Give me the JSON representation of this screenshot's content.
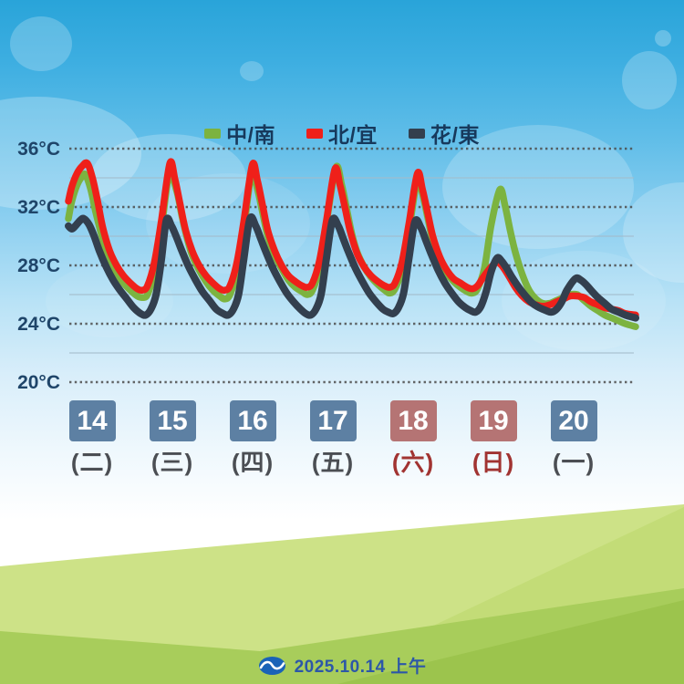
{
  "legend": {
    "position": "top-center"
  },
  "footer": {
    "issued": "2025.10.14 上午",
    "logo": "cwa-logo"
  },
  "colors": {
    "sky_top": "#29a4d9",
    "weekday_box": "#5d80a3",
    "weekend_box": "#b57474",
    "weekday_text": "#4b4e53",
    "weekend_text": "#a13331",
    "tick_label": "#1f4569",
    "major_grid": "#4c4c4c",
    "minor_grid": "#a3bcca",
    "hill_back": "#cde287",
    "hill_mid": "#c3dc77",
    "hill_front": "#a8cd5b",
    "hill_front_dark": "#9cc44d",
    "footer_text": "#2c57a8"
  },
  "chart_data": {
    "type": "line",
    "title": "",
    "xlabel": "",
    "ylabel": "°C",
    "x_unit": "hours since 2025-10-14 00:00",
    "x_range": [
      8,
      173
    ],
    "ylim": [
      19.5,
      37
    ],
    "y_ticks": [
      {
        "value": 36,
        "label": "36°C"
      },
      {
        "value": 32,
        "label": "32°C"
      },
      {
        "value": 28,
        "label": "28°C"
      },
      {
        "value": 24,
        "label": "24°C"
      },
      {
        "value": 20,
        "label": "20°C"
      }
    ],
    "y_minor": [
      34,
      30,
      26,
      22
    ],
    "grid": {
      "major": "dotted dark",
      "minor": "solid light"
    },
    "legend_position": "top",
    "days": [
      {
        "date": "14",
        "weekday": "(二)",
        "weekend": false
      },
      {
        "date": "15",
        "weekday": "(三)",
        "weekend": false
      },
      {
        "date": "16",
        "weekday": "(四)",
        "weekend": false
      },
      {
        "date": "17",
        "weekday": "(五)",
        "weekend": false
      },
      {
        "date": "18",
        "weekday": "(六)",
        "weekend": true
      },
      {
        "date": "19",
        "weekday": "(日)",
        "weekend": true
      },
      {
        "date": "20",
        "weekday": "(一)",
        "weekend": false
      }
    ],
    "series": [
      {
        "name": "中/南",
        "slug": "central-south",
        "color": "#7cb340",
        "stroke_width": 7.5,
        "points": [
          [
            8,
            31.2
          ],
          [
            9,
            32.4
          ],
          [
            10.5,
            33.5
          ],
          [
            12,
            34.1
          ],
          [
            13,
            34.2
          ],
          [
            14.5,
            33.2
          ],
          [
            16,
            31.6
          ],
          [
            18,
            29.8
          ],
          [
            20,
            28.4
          ],
          [
            22,
            27.5
          ],
          [
            24,
            26.8
          ],
          [
            26,
            26.3
          ],
          [
            28,
            25.9
          ],
          [
            29.5,
            25.8
          ],
          [
            31,
            26
          ],
          [
            33,
            27.6
          ],
          [
            35,
            30.4
          ],
          [
            37.3,
            34.2
          ],
          [
            39.5,
            33.1
          ],
          [
            41,
            31.4
          ],
          [
            42.5,
            29.9
          ],
          [
            44,
            28.7
          ],
          [
            46,
            27.7
          ],
          [
            48,
            26.9
          ],
          [
            50,
            26.3
          ],
          [
            52,
            25.9
          ],
          [
            53.5,
            25.7
          ],
          [
            55,
            26
          ],
          [
            57,
            27.6
          ],
          [
            59,
            30.5
          ],
          [
            61.3,
            34.3
          ],
          [
            63,
            33.2
          ],
          [
            64.5,
            31.6
          ],
          [
            66,
            30
          ],
          [
            68,
            28.7
          ],
          [
            70,
            27.8
          ],
          [
            72,
            27
          ],
          [
            74,
            26.5
          ],
          [
            76,
            26.2
          ],
          [
            77.5,
            26
          ],
          [
            79,
            26.3
          ],
          [
            81,
            27.8
          ],
          [
            83,
            30.8
          ],
          [
            85.8,
            34.7
          ],
          [
            87.5,
            33.5
          ],
          [
            89,
            31.8
          ],
          [
            90.5,
            30.1
          ],
          [
            92,
            28.9
          ],
          [
            94,
            27.9
          ],
          [
            96,
            27.2
          ],
          [
            98,
            26.7
          ],
          [
            100,
            26.3
          ],
          [
            101.5,
            26.1
          ],
          [
            103,
            26.4
          ],
          [
            105,
            27.7
          ],
          [
            107,
            30.3
          ],
          [
            109.5,
            33.9
          ],
          [
            111,
            32.9
          ],
          [
            112.5,
            31.3
          ],
          [
            114,
            29.7
          ],
          [
            116,
            28.4
          ],
          [
            118,
            27.5
          ],
          [
            120,
            26.9
          ],
          [
            122,
            26.5
          ],
          [
            124,
            26.2
          ],
          [
            125.5,
            26.1
          ],
          [
            127,
            26.4
          ],
          [
            129,
            27.8
          ],
          [
            131,
            30.8
          ],
          [
            133.5,
            33.2
          ],
          [
            135,
            32.1
          ],
          [
            136.5,
            30.4
          ],
          [
            138,
            28.9
          ],
          [
            140,
            27.4
          ],
          [
            142,
            26.3
          ],
          [
            144,
            25.7
          ],
          [
            146,
            25.4
          ],
          [
            148,
            25.4
          ],
          [
            150,
            25.6
          ],
          [
            152,
            25.8
          ],
          [
            154,
            26
          ],
          [
            156,
            26
          ],
          [
            158,
            25.6
          ],
          [
            160,
            25.2
          ],
          [
            162,
            24.9
          ],
          [
            164,
            24.6
          ],
          [
            166,
            24.4
          ],
          [
            168,
            24.2
          ],
          [
            170,
            24
          ],
          [
            173,
            23.8
          ]
        ]
      },
      {
        "name": "北/宜",
        "slug": "north-yilan",
        "color": "#ef201a",
        "stroke_width": 7.5,
        "points": [
          [
            8,
            32.4
          ],
          [
            9,
            33.4
          ],
          [
            10.5,
            34.3
          ],
          [
            12,
            34.8
          ],
          [
            13.5,
            35
          ],
          [
            15,
            34
          ],
          [
            16.5,
            32.4
          ],
          [
            18,
            30.6
          ],
          [
            20,
            29
          ],
          [
            22,
            28
          ],
          [
            24,
            27.3
          ],
          [
            26,
            26.8
          ],
          [
            28,
            26.4
          ],
          [
            29.5,
            26.3
          ],
          [
            31,
            26.6
          ],
          [
            33,
            28.2
          ],
          [
            35,
            31
          ],
          [
            37.5,
            35
          ],
          [
            39,
            33.9
          ],
          [
            40.5,
            32.2
          ],
          [
            42,
            30.5
          ],
          [
            44,
            29
          ],
          [
            46,
            28
          ],
          [
            48,
            27.3
          ],
          [
            50,
            26.8
          ],
          [
            52,
            26.4
          ],
          [
            53.5,
            26.3
          ],
          [
            55,
            26.6
          ],
          [
            57,
            28.2
          ],
          [
            59,
            31
          ],
          [
            61.5,
            34.9
          ],
          [
            63,
            33.8
          ],
          [
            64.5,
            32.1
          ],
          [
            66,
            30.4
          ],
          [
            68,
            29
          ],
          [
            70,
            28
          ],
          [
            72,
            27.3
          ],
          [
            74,
            26.9
          ],
          [
            76,
            26.6
          ],
          [
            77.5,
            26.5
          ],
          [
            79,
            26.8
          ],
          [
            81,
            28.3
          ],
          [
            83,
            31
          ],
          [
            85.5,
            34.6
          ],
          [
            87,
            33.5
          ],
          [
            88.5,
            31.9
          ],
          [
            90,
            30.3
          ],
          [
            92,
            28.8
          ],
          [
            94,
            27.9
          ],
          [
            96,
            27.3
          ],
          [
            98,
            26.9
          ],
          [
            100,
            26.6
          ],
          [
            101.5,
            26.5
          ],
          [
            103,
            26.8
          ],
          [
            105,
            28.2
          ],
          [
            107,
            30.8
          ],
          [
            109.5,
            34.3
          ],
          [
            111,
            33.2
          ],
          [
            112.5,
            31.6
          ],
          [
            114,
            30
          ],
          [
            116,
            28.6
          ],
          [
            118,
            27.7
          ],
          [
            120,
            27.1
          ],
          [
            122,
            26.8
          ],
          [
            124,
            26.5
          ],
          [
            125.5,
            26.4
          ],
          [
            127,
            26.6
          ],
          [
            129,
            27.3
          ],
          [
            131,
            27.9
          ],
          [
            132.5,
            28.2
          ],
          [
            134,
            28
          ],
          [
            136,
            27.3
          ],
          [
            138,
            26.5
          ],
          [
            140,
            25.9
          ],
          [
            142,
            25.5
          ],
          [
            144,
            25.3
          ],
          [
            146,
            25.2
          ],
          [
            148,
            25.3
          ],
          [
            150,
            25.5
          ],
          [
            152,
            25.7
          ],
          [
            154,
            25.9
          ],
          [
            156,
            25.9
          ],
          [
            158,
            25.8
          ],
          [
            160,
            25.5
          ],
          [
            162,
            25.3
          ],
          [
            164,
            25.1
          ],
          [
            166,
            25
          ],
          [
            168,
            24.9
          ],
          [
            170,
            24.7
          ],
          [
            173,
            24.6
          ]
        ]
      },
      {
        "name": "花/東",
        "slug": "hualien-taitung",
        "color": "#333f4e",
        "stroke_width": 8,
        "points": [
          [
            8,
            30.7
          ],
          [
            9,
            30.5
          ],
          [
            10,
            30.7
          ],
          [
            11.5,
            31.1
          ],
          [
            12.5,
            31.2
          ],
          [
            14,
            30.8
          ],
          [
            15.5,
            30
          ],
          [
            17,
            29
          ],
          [
            19,
            27.9
          ],
          [
            21,
            27
          ],
          [
            23,
            26.3
          ],
          [
            25,
            25.7
          ],
          [
            27,
            25.1
          ],
          [
            29,
            24.7
          ],
          [
            30.5,
            24.6
          ],
          [
            32,
            25
          ],
          [
            33.5,
            26
          ],
          [
            35,
            28.3
          ],
          [
            36.5,
            31.1
          ],
          [
            38,
            30.7
          ],
          [
            39.5,
            29.9
          ],
          [
            41,
            29
          ],
          [
            43,
            27.9
          ],
          [
            45,
            27
          ],
          [
            47,
            26.2
          ],
          [
            49,
            25.6
          ],
          [
            51,
            25
          ],
          [
            53,
            24.7
          ],
          [
            54.5,
            24.6
          ],
          [
            56,
            25
          ],
          [
            57.5,
            26
          ],
          [
            59,
            28.4
          ],
          [
            60.8,
            31.2
          ],
          [
            62.5,
            30.7
          ],
          [
            64,
            29.8
          ],
          [
            65.5,
            28.9
          ],
          [
            67.5,
            27.8
          ],
          [
            69.5,
            26.9
          ],
          [
            71.5,
            26.1
          ],
          [
            73.5,
            25.5
          ],
          [
            75.5,
            25
          ],
          [
            77,
            24.7
          ],
          [
            78.5,
            24.6
          ],
          [
            80,
            25
          ],
          [
            81.5,
            26
          ],
          [
            83,
            28.4
          ],
          [
            84.8,
            31.1
          ],
          [
            86.5,
            30.7
          ],
          [
            88,
            29.8
          ],
          [
            89.5,
            28.9
          ],
          [
            91.5,
            27.8
          ],
          [
            93.5,
            26.9
          ],
          [
            95.5,
            26.1
          ],
          [
            97.5,
            25.5
          ],
          [
            99.5,
            25
          ],
          [
            101,
            24.8
          ],
          [
            102.5,
            24.7
          ],
          [
            104,
            25.1
          ],
          [
            105.5,
            26.1
          ],
          [
            107,
            28.4
          ],
          [
            108.8,
            31
          ],
          [
            110.5,
            30.6
          ],
          [
            112,
            29.7
          ],
          [
            113.5,
            28.8
          ],
          [
            115.5,
            27.7
          ],
          [
            117.5,
            26.8
          ],
          [
            119.5,
            26.1
          ],
          [
            121.5,
            25.5
          ],
          [
            123.5,
            25.1
          ],
          [
            125,
            24.9
          ],
          [
            126.5,
            24.8
          ],
          [
            128,
            25.2
          ],
          [
            129.5,
            26.2
          ],
          [
            131,
            27.6
          ],
          [
            132.7,
            28.5
          ],
          [
            134,
            28.3
          ],
          [
            135.5,
            27.8
          ],
          [
            137,
            27.2
          ],
          [
            139,
            26.5
          ],
          [
            141,
            25.9
          ],
          [
            143,
            25.4
          ],
          [
            145,
            25.1
          ],
          [
            147,
            24.9
          ],
          [
            148.5,
            24.8
          ],
          [
            150,
            25
          ],
          [
            151.5,
            25.5
          ],
          [
            153,
            26.3
          ],
          [
            155.5,
            27.1
          ],
          [
            157,
            27
          ],
          [
            158.5,
            26.7
          ],
          [
            160,
            26.3
          ],
          [
            162,
            25.8
          ],
          [
            164,
            25.4
          ],
          [
            166,
            25
          ],
          [
            168,
            24.8
          ],
          [
            170,
            24.6
          ],
          [
            173,
            24.4
          ]
        ]
      }
    ]
  }
}
